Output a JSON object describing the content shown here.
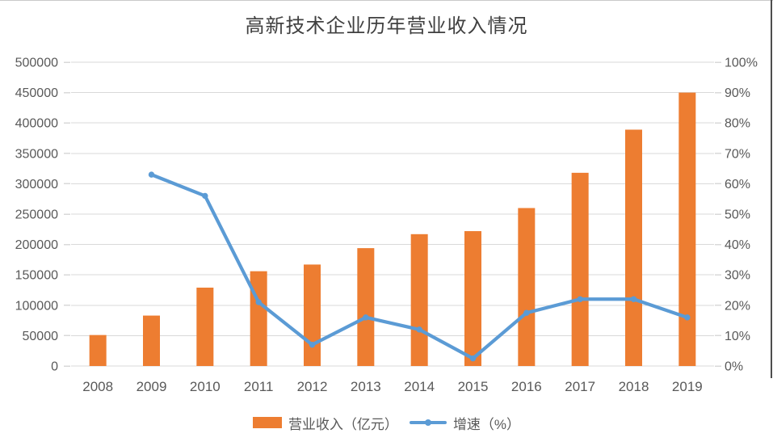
{
  "chart_data": {
    "type": "combo",
    "title": "高新技术企业历年营业收入情况",
    "categories": [
      "2008",
      "2009",
      "2010",
      "2011",
      "2012",
      "2013",
      "2014",
      "2015",
      "2016",
      "2017",
      "2018",
      "2019"
    ],
    "series": [
      {
        "name": "营业收入（亿元）",
        "type": "bar",
        "axis": "left",
        "color": "#ED7D31",
        "values": [
          51000,
          83000,
          129000,
          156000,
          167000,
          194000,
          217000,
          222000,
          260000,
          318000,
          389000,
          450000
        ]
      },
      {
        "name": "增速（%）",
        "type": "line",
        "axis": "right",
        "color": "#5B9BD5",
        "values": [
          null,
          63,
          56,
          21,
          7,
          16,
          12,
          2.5,
          17.5,
          22,
          22,
          16
        ]
      }
    ],
    "left_axis": {
      "min": 0,
      "max": 500000,
      "step": 50000,
      "tick_labels": [
        "0",
        "50000",
        "100000",
        "150000",
        "200000",
        "250000",
        "300000",
        "350000",
        "400000",
        "450000",
        "500000"
      ]
    },
    "right_axis": {
      "min": 0,
      "max": 100,
      "step": 10,
      "tick_labels": [
        "0%",
        "10%",
        "20%",
        "30%",
        "40%",
        "50%",
        "60%",
        "70%",
        "80%",
        "90%",
        "100%"
      ]
    },
    "grid": true,
    "legend_position": "bottom"
  },
  "colors": {
    "gridline": "#D9D9D9",
    "axis_text": "#595959",
    "title_text": "#404040",
    "border_top": "#C9C9C9",
    "border_right": "#4D4D4D"
  }
}
